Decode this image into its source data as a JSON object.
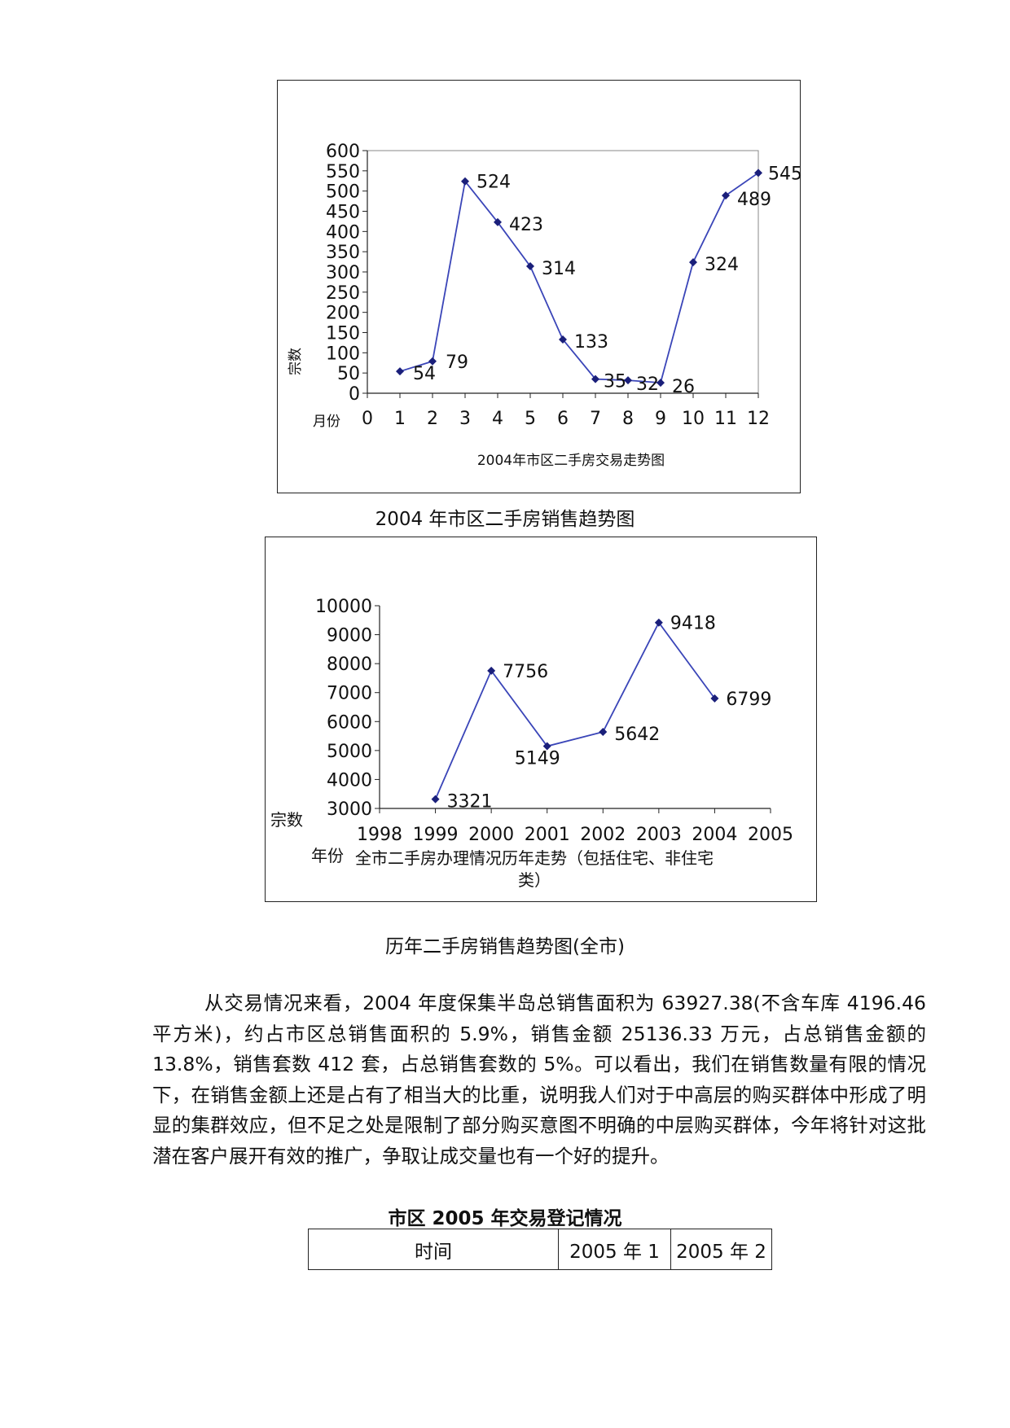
{
  "chart_data": [
    {
      "type": "line",
      "title": "2004年市区二手房交易走势图",
      "xlabel": "月份",
      "ylabel": "宗数",
      "x": [
        1,
        2,
        3,
        4,
        5,
        6,
        7,
        8,
        9,
        10,
        11,
        12
      ],
      "series": [
        {
          "values": [
            54,
            79,
            524,
            423,
            314,
            133,
            35,
            32,
            26,
            324,
            489,
            545
          ]
        }
      ],
      "xlim": [
        0,
        12
      ],
      "ylim": [
        0,
        600
      ],
      "x_ticks": [
        "0",
        "1",
        "2",
        "3",
        "4",
        "5",
        "6",
        "7",
        "8",
        "9",
        "10",
        "11",
        "12"
      ],
      "y_ticks": [
        "0",
        "50",
        "100",
        "150",
        "200",
        "250",
        "300",
        "350",
        "400",
        "450",
        "500",
        "550",
        "600"
      ],
      "line_color": "#3a45b8",
      "marker_color": "#1a1f7a",
      "grid": false
    },
    {
      "type": "line",
      "title": "全市二手房办理情况历年走势（包括住宅、非住宅类）",
      "title_lines": [
        "全市二手房办理情况历年走势（包括住宅、非住宅",
        "类）"
      ],
      "xlabel": "年份",
      "ylabel": "宗数",
      "x": [
        1999,
        2000,
        2001,
        2002,
        2003,
        2004
      ],
      "series": [
        {
          "values": [
            3321,
            7756,
            5149,
            5642,
            9418,
            6799
          ]
        }
      ],
      "xlim": [
        1998,
        2005
      ],
      "ylim": [
        3000,
        10000
      ],
      "x_ticks": [
        "1998",
        "1999",
        "2000",
        "2001",
        "2002",
        "2003",
        "2004",
        "2005"
      ],
      "y_ticks": [
        "3000",
        "4000",
        "5000",
        "6000",
        "7000",
        "8000",
        "9000",
        "10000"
      ],
      "line_color": "#3a45b8",
      "marker_color": "#1a1f7a",
      "grid": false
    }
  ],
  "captions": {
    "chart1": "2004 年市区二手房销售趋势图",
    "chart2": "历年二手房销售趋势图(全市)"
  },
  "paragraph": "从交易情况来看，2004 年度保集半岛总销售面积为 63927.38(不含车库 4196.46 平方米)，约占市区总销售面积的 5.9%，销售金额 25136.33 万元，占总销售金额的 13.8%，销售套数 412 套，占总销售套数的 5%。可以看出，我们在销售数量有限的情况下，在销售金额上还是占有了相当大的比重，说明我人们对于中高层的购买群体中形成了明显的集群效应，但不足之处是限制了部分购买意图不明确的中层购买群体，今年将针对这批潜在客户展开有效的推广，争取让成交量也有一个好的提升。",
  "table": {
    "title": "市区 2005 年交易登记情况",
    "header": [
      "时间",
      "2005 年 1",
      "2005 年 2"
    ]
  }
}
